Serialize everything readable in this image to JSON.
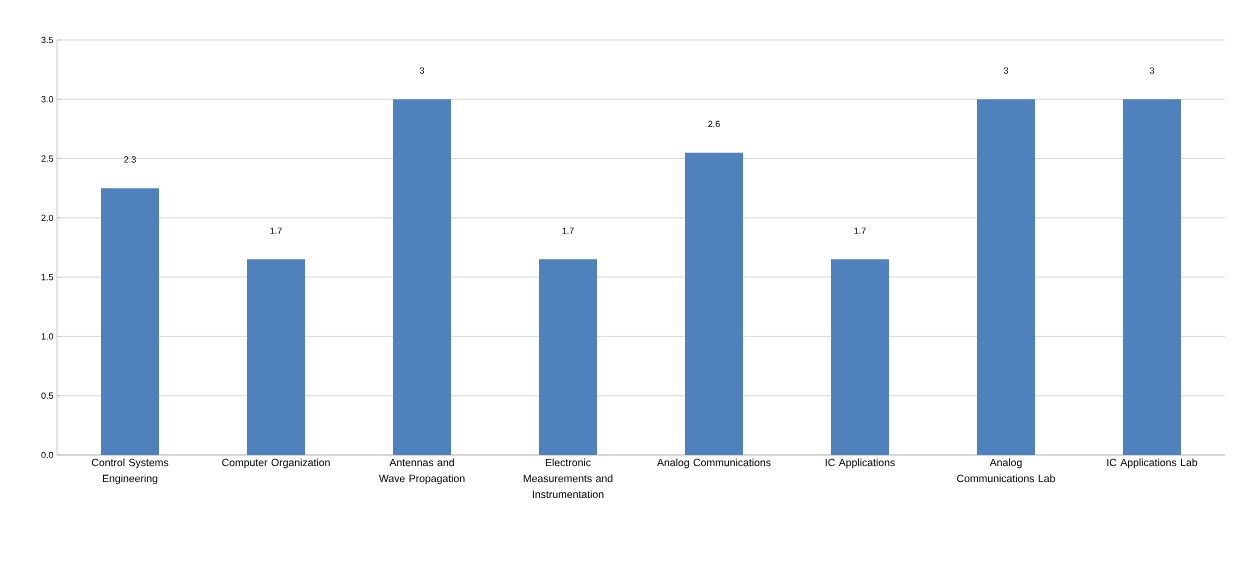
{
  "chart_data": {
    "type": "bar",
    "categories": [
      "Control Systems Engineering",
      "Computer Organization",
      "Antennas and Wave Propagation",
      "Electronic Measurements and Instrumentation",
      "Analog Communications",
      "IC Applications",
      "Analog Communications Lab",
      "IC Applications Lab"
    ],
    "values": [
      2.25,
      1.65,
      3,
      1.65,
      2.55,
      1.65,
      3,
      3
    ],
    "value_labels": [
      "2.3",
      "1.7",
      "3",
      "1.7",
      "2.6",
      "1.7",
      "3",
      "3"
    ],
    "color": "#4f81bd",
    "ylim": [
      0,
      3.5
    ],
    "yticks": [
      {
        "value": 0,
        "label": "0.0"
      },
      {
        "value": 0.5,
        "label": "0.5"
      },
      {
        "value": 1,
        "label": "1.0"
      },
      {
        "value": 1.5,
        "label": "1.5"
      },
      {
        "value": 2,
        "label": "2.0"
      },
      {
        "value": 2.5,
        "label": "2.5"
      },
      {
        "value": 3,
        "label": "3.0"
      },
      {
        "value": 3.5,
        "label": "3.5"
      }
    ],
    "grid": "y"
  }
}
